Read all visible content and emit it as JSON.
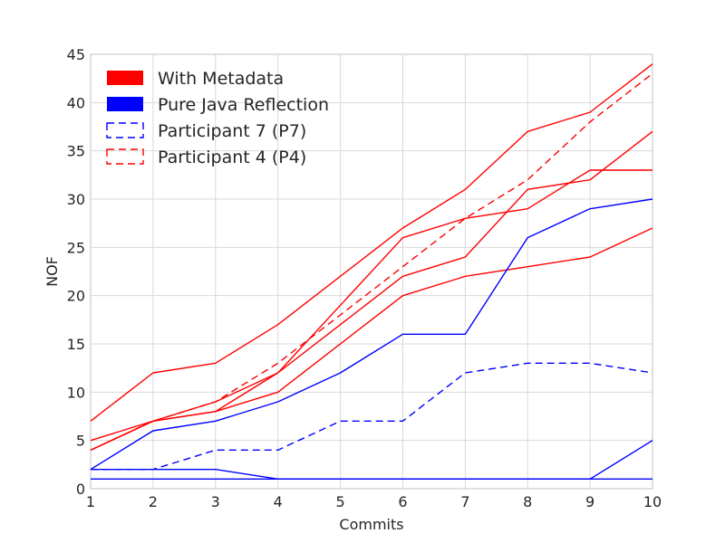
{
  "chart_data": {
    "type": "line",
    "xlabel": "Commits",
    "ylabel": "NOF",
    "xlim": [
      1,
      10
    ],
    "ylim": [
      0,
      45
    ],
    "xticks": [
      1,
      2,
      3,
      4,
      5,
      6,
      7,
      8,
      9,
      10
    ],
    "yticks": [
      0,
      5,
      10,
      15,
      20,
      25,
      30,
      35,
      40,
      45
    ],
    "grid": true,
    "legend_position": "top-left",
    "legend": [
      {
        "label": "With Metadata",
        "color": "#ff0000",
        "style": "patch"
      },
      {
        "label": "Pure Java Reflection",
        "color": "#0000ff",
        "style": "patch"
      },
      {
        "label": "Participant 7 (P7)",
        "color": "#0000ff",
        "style": "dashed"
      },
      {
        "label": "Participant 4 (P4)",
        "color": "#ff0000",
        "style": "dashed"
      }
    ],
    "x": [
      1,
      2,
      3,
      4,
      5,
      6,
      7,
      8,
      9,
      10
    ],
    "series": [
      {
        "group": "With Metadata",
        "color": "#ff0000",
        "dashed": false,
        "values": [
          7,
          12,
          13,
          17,
          22,
          27,
          31,
          37,
          39,
          44
        ]
      },
      {
        "group": "With Metadata",
        "color": "#ff0000",
        "dashed": false,
        "values": [
          4,
          7,
          9,
          12,
          19,
          26,
          28,
          29,
          33,
          33
        ]
      },
      {
        "group": "With Metadata",
        "color": "#ff0000",
        "dashed": false,
        "values": [
          4,
          7,
          8,
          12,
          17,
          22,
          24,
          31,
          32,
          37
        ]
      },
      {
        "group": "With Metadata",
        "color": "#ff0000",
        "dashed": false,
        "values": [
          5,
          7,
          8,
          10,
          15,
          20,
          22,
          23,
          24,
          27
        ]
      },
      {
        "group": "Participant 4 (P4)",
        "color": "#ff0000",
        "dashed": true,
        "values": [
          4,
          7,
          9,
          13,
          18,
          23,
          28,
          32,
          38,
          43
        ]
      },
      {
        "group": "Pure Java Reflection",
        "color": "#0000ff",
        "dashed": false,
        "values": [
          2,
          6,
          7,
          9,
          12,
          16,
          16,
          26,
          29,
          30
        ]
      },
      {
        "group": "Pure Java Reflection",
        "color": "#0000ff",
        "dashed": false,
        "values": [
          2,
          2,
          2,
          1,
          1,
          1,
          1,
          1,
          1,
          5
        ]
      },
      {
        "group": "Pure Java Reflection",
        "color": "#0000ff",
        "dashed": false,
        "values": [
          1,
          1,
          1,
          1,
          1,
          1,
          1,
          1,
          1,
          1
        ]
      },
      {
        "group": "Participant 7 (P7)",
        "color": "#0000ff",
        "dashed": true,
        "values": [
          2,
          2,
          4,
          4,
          7,
          7,
          12,
          13,
          13,
          12
        ]
      }
    ]
  }
}
